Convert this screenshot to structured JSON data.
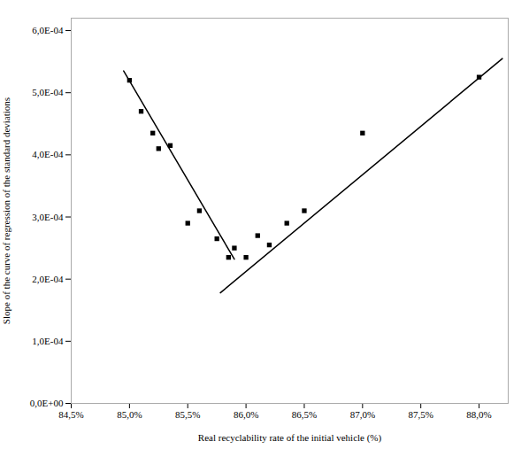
{
  "chart_data": {
    "type": "scatter",
    "xlabel": "Real recyclability rate of the initial vehicle (%)",
    "ylabel": "Slope of the curve of regression of the standard deviations",
    "series": [
      {
        "type": "scatter",
        "marker": "square",
        "color": "#000000",
        "x": [
          85.0,
          85.1,
          85.2,
          85.25,
          85.35,
          85.5,
          85.6,
          85.75,
          85.85,
          85.9,
          86.0,
          86.1,
          86.2,
          86.35,
          86.5,
          87.0,
          88.0
        ],
        "values": [
          0.00052,
          0.00047,
          0.000435,
          0.00041,
          0.000415,
          0.00029,
          0.00031,
          0.000265,
          0.000235,
          0.00025,
          0.000235,
          0.00027,
          0.000255,
          0.00029,
          0.00031,
          0.000435,
          0.000525
        ]
      },
      {
        "type": "line",
        "color": "#000000",
        "x": [
          84.95,
          85.9
        ],
        "values": [
          0.000535,
          0.000232
        ]
      },
      {
        "type": "line",
        "color": "#000000",
        "x": [
          85.78,
          88.2
        ],
        "values": [
          0.000178,
          0.000555
        ]
      }
    ],
    "xlim": [
      84.5,
      88.25
    ],
    "ylim": [
      0.0,
      0.00062
    ],
    "xticks": [
      {
        "value": 84.5,
        "label": "84,5%"
      },
      {
        "value": 85.0,
        "label": "85,0%"
      },
      {
        "value": 85.5,
        "label": "85,5%"
      },
      {
        "value": 86.0,
        "label": "86,0%"
      },
      {
        "value": 86.5,
        "label": "86,5%"
      },
      {
        "value": 87.0,
        "label": "87,0%"
      },
      {
        "value": 87.5,
        "label": "87,5%"
      },
      {
        "value": 88.0,
        "label": "88,0%"
      }
    ],
    "yticks": [
      {
        "value": 0.0,
        "label": "0,0E+00"
      },
      {
        "value": 0.0001,
        "label": "1,0E-04"
      },
      {
        "value": 0.0002,
        "label": "2,0E-04"
      },
      {
        "value": 0.0003,
        "label": "3,0E-04"
      },
      {
        "value": 0.0004,
        "label": "4,0E-04"
      },
      {
        "value": 0.0005,
        "label": "5,0E-04"
      },
      {
        "value": 0.0006,
        "label": "6,0E-04"
      }
    ]
  }
}
